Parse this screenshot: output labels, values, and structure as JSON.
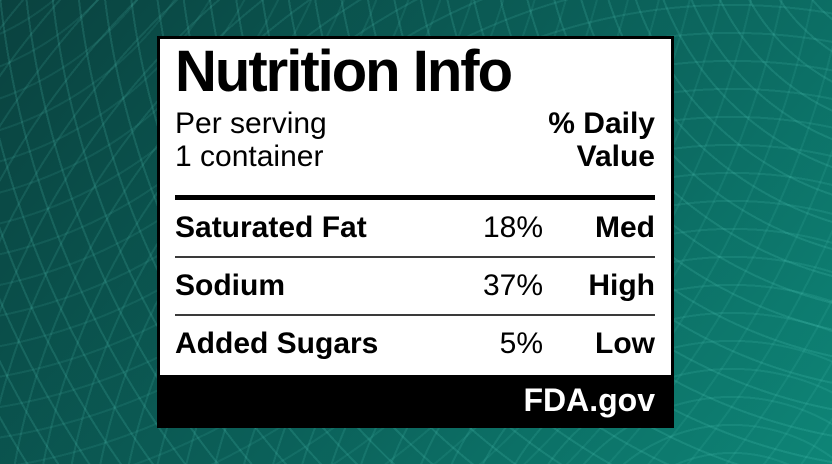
{
  "page": {
    "background": {
      "top_left_color": "#0a423f",
      "mid_color": "#0b6059",
      "bottom_right_color": "#0e8577",
      "arc_line_color": "#5cd6c6"
    }
  },
  "label": {
    "title": "Nutrition Info",
    "serving": {
      "line1": "Per serving",
      "line2": "1 container"
    },
    "daily_value_header": {
      "line1": "% Daily",
      "line2": "Value"
    },
    "rows": [
      {
        "name": "Saturated Fat",
        "percent": "18%",
        "level": "Med"
      },
      {
        "name": "Sodium",
        "percent": "37%",
        "level": "High"
      },
      {
        "name": "Added Sugars",
        "percent": "5%",
        "level": "Low"
      }
    ],
    "footer": {
      "text": "FDA.gov"
    }
  }
}
